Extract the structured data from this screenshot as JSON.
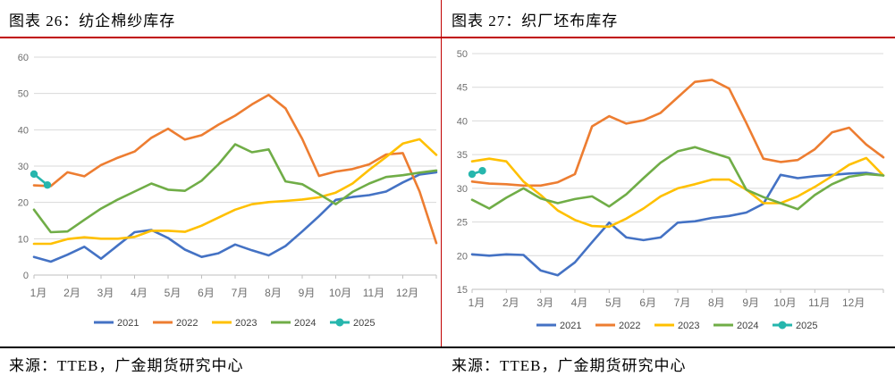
{
  "panels": [
    {
      "title": "图表 26：纺企棉纱库存",
      "source": "来源：TTEB，广金期货研究中心"
    },
    {
      "title": "图表 27：织厂坯布库存",
      "source": "来源：TTEB，广金期货研究中心"
    }
  ],
  "decor": {
    "accent_red": "#C00000",
    "grid_color": "#d9d9d9",
    "axis_color": "#bfbfbf"
  },
  "chart_data": [
    {
      "type": "line",
      "title": "纺企棉纱库存",
      "x_labels": [
        "1月",
        "2月",
        "3月",
        "4月",
        "5月",
        "6月",
        "7月",
        "8月",
        "9月",
        "10月",
        "11月",
        "12月"
      ],
      "y_axis": {
        "min": 0,
        "max": 60,
        "step": 10
      },
      "grid": "horizontal",
      "legend_position": "bottom",
      "x_start": 1,
      "x_step": 0.5,
      "series": [
        {
          "name": "2021",
          "color": "#4472C4",
          "values": [
            5,
            3.7,
            5.6,
            7.8,
            4.5,
            8.2,
            11.8,
            12.4,
            10.2,
            7,
            5,
            6,
            8.4,
            6.8,
            5.4,
            8,
            12,
            16.2,
            20.7,
            21.5,
            22,
            23,
            25.5,
            27.7,
            28.3
          ]
        },
        {
          "name": "2022",
          "color": "#ED7D31",
          "values": [
            24.7,
            24.5,
            28.3,
            27.2,
            30.3,
            32.3,
            34,
            37.8,
            40.3,
            37.3,
            38.5,
            41.4,
            43.9,
            47,
            49.6,
            45.9,
            37.5,
            27.3,
            28.5,
            29.2,
            30.5,
            33.2,
            33.6,
            23,
            8.8
          ]
        },
        {
          "name": "2023",
          "color": "#FFC000",
          "values": [
            8.6,
            8.6,
            9.9,
            10.4,
            10,
            10,
            10.5,
            12.2,
            12.2,
            11.9,
            13.6,
            15.8,
            18,
            19.5,
            20.1,
            20.4,
            20.8,
            21.4,
            22.7,
            25.2,
            29,
            32.5,
            36.2,
            37.4,
            33.1
          ]
        },
        {
          "name": "2024",
          "color": "#70AD47",
          "values": [
            18,
            11.8,
            12,
            15.2,
            18.3,
            20.8,
            23,
            25.2,
            23.5,
            23.2,
            26,
            30.5,
            36,
            33.8,
            34.6,
            25.8,
            25,
            22.3,
            19.5,
            22.9,
            25.2,
            27,
            27.5,
            28.2,
            28.8
          ]
        },
        {
          "name": "2025",
          "color": "#26B6AD",
          "marker": true,
          "x": [
            1,
            1.4
          ],
          "values": [
            27.8,
            24.8
          ]
        }
      ]
    },
    {
      "type": "line",
      "title": "织厂坯布库存",
      "x_labels": [
        "1月",
        "2月",
        "3月",
        "4月",
        "5月",
        "6月",
        "7月",
        "8月",
        "9月",
        "10月",
        "11月",
        "12月"
      ],
      "y_axis": {
        "min": 15,
        "max": 50,
        "step": 5
      },
      "grid": "horizontal",
      "legend_position": "bottom",
      "x_start": 1,
      "x_step": 0.5,
      "series": [
        {
          "name": "2021",
          "color": "#4472C4",
          "values": [
            20.2,
            20,
            20.2,
            20.1,
            17.8,
            17.1,
            19,
            22,
            24.9,
            22.7,
            22.3,
            22.7,
            24.9,
            25.1,
            25.6,
            25.9,
            26.4,
            27.7,
            32,
            31.5,
            31.8,
            32,
            32.2,
            32.3,
            31.9
          ]
        },
        {
          "name": "2022",
          "color": "#ED7D31",
          "values": [
            31,
            30.7,
            30.6,
            30.4,
            30.4,
            30.9,
            32.1,
            39.2,
            40.7,
            39.6,
            40.1,
            41.2,
            43.5,
            45.8,
            46.1,
            44.8,
            39.7,
            34.4,
            33.9,
            34.2,
            35.8,
            38.3,
            39,
            36.5,
            34.6
          ]
        },
        {
          "name": "2023",
          "color": "#FFC000",
          "values": [
            34,
            34.4,
            34,
            31,
            29,
            26.7,
            25.3,
            24.4,
            24.3,
            25.5,
            27,
            28.8,
            30,
            30.6,
            31.3,
            31.3,
            29.8,
            27.8,
            27.8,
            28.8,
            30.2,
            31.8,
            33.5,
            34.5,
            31.9
          ]
        },
        {
          "name": "2024",
          "color": "#70AD47",
          "values": [
            28.3,
            27,
            28.6,
            30,
            28.5,
            27.8,
            28.4,
            28.8,
            27.3,
            29.1,
            31.5,
            33.8,
            35.5,
            36.1,
            35.3,
            34.5,
            29.8,
            28.7,
            27.8,
            26.9,
            29,
            30.6,
            31.7,
            32.1,
            31.9
          ]
        },
        {
          "name": "2025",
          "color": "#26B6AD",
          "marker": true,
          "x": [
            1,
            1.3
          ],
          "values": [
            32.1,
            32.6
          ]
        }
      ]
    }
  ]
}
